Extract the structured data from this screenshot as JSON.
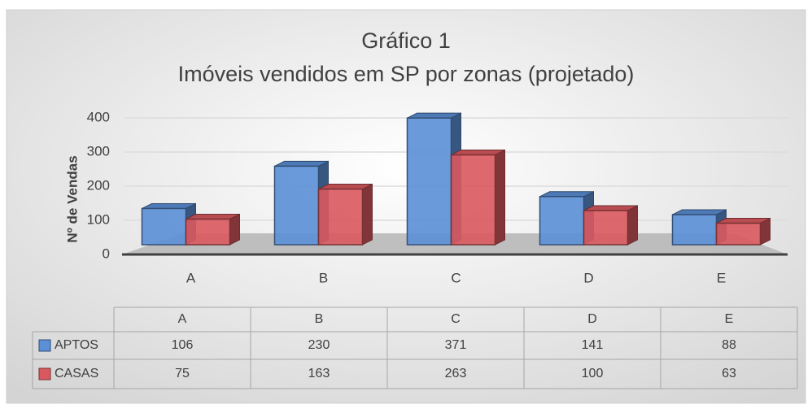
{
  "chart_data": {
    "type": "bar3d",
    "title": "Gráfico 1",
    "subtitle": "Imóveis vendidos em SP por zonas (projetado)",
    "y_label": "Nº de Vendas",
    "categories": [
      "A",
      "B",
      "C",
      "D",
      "E"
    ],
    "series": [
      {
        "name": "APTOS",
        "color": "#5b8fd6",
        "values": [
          106,
          230,
          371,
          141,
          88
        ]
      },
      {
        "name": "CASAS",
        "color": "#d9595f",
        "values": [
          75,
          163,
          263,
          100,
          63
        ]
      }
    ],
    "ylim": [
      0,
      400
    ],
    "yticks": [
      0,
      100,
      200,
      300,
      400
    ],
    "grid": true,
    "data_table": true
  }
}
